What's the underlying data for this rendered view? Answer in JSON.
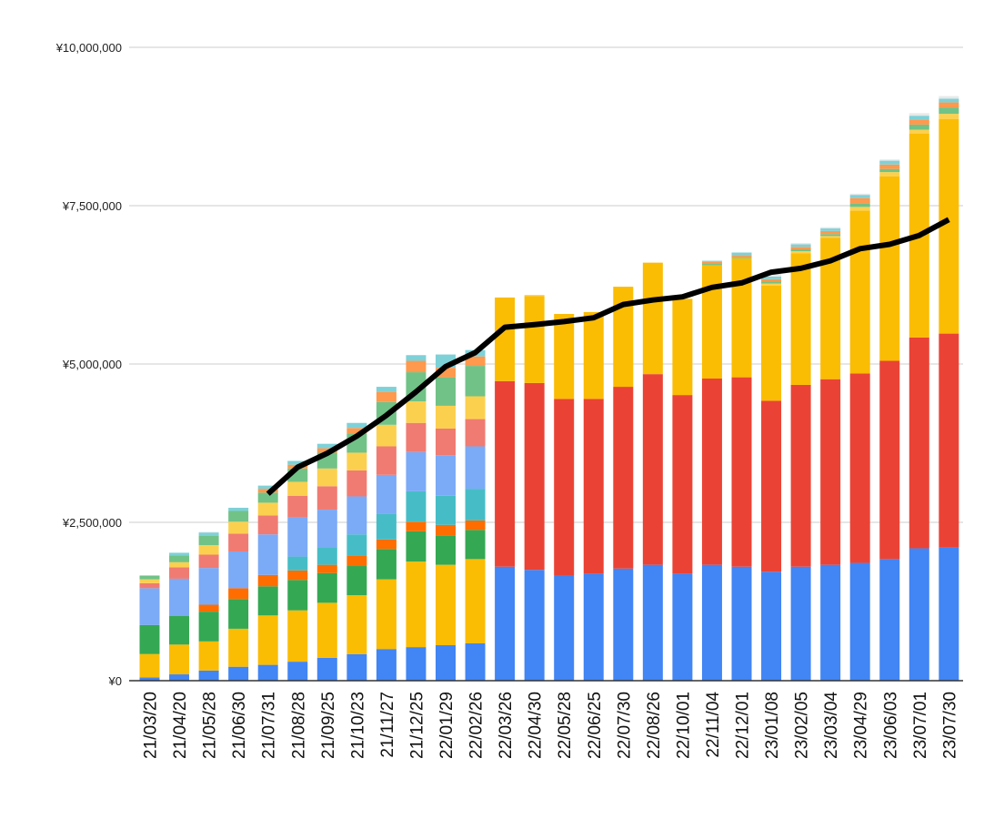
{
  "chart_data": {
    "type": "bar",
    "stacked": true,
    "title": "",
    "xlabel": "",
    "ylabel": "",
    "ylim": [
      0,
      10000000
    ],
    "yticks": [
      0,
      2500000,
      5000000,
      7500000,
      10000000
    ],
    "ytick_labels": [
      "¥0",
      "¥2,500,000",
      "¥5,000,000",
      "¥7,500,000",
      "¥10,000,000"
    ],
    "grid": true,
    "legend": "none",
    "categories": [
      "21/03/20",
      "21/04/20",
      "21/05/28",
      "21/06/30",
      "21/07/31",
      "21/08/28",
      "21/09/25",
      "21/10/23",
      "21/11/27",
      "21/12/25",
      "22/01/29",
      "22/02/26",
      "22/03/26",
      "22/04/30",
      "22/05/28",
      "22/06/25",
      "22/07/30",
      "22/08/26",
      "22/10/01",
      "22/11/04",
      "22/12/01",
      "23/01/08",
      "23/02/05",
      "23/03/04",
      "23/04/29",
      "23/06/03",
      "23/07/01",
      "23/07/30"
    ],
    "series": [
      {
        "color": "#4285f4",
        "values": [
          50000,
          100000,
          160000,
          220000,
          250000,
          300000,
          360000,
          420000,
          500000,
          530000,
          560000,
          590000,
          1800000,
          1750000,
          1660000,
          1690000,
          1770000,
          1830000,
          1690000,
          1830000,
          1800000,
          1720000,
          1800000,
          1830000,
          1860000,
          1920000,
          2090000,
          2100000
        ]
      },
      {
        "color": "#ea4335",
        "values": [
          0,
          0,
          0,
          0,
          0,
          0,
          0,
          0,
          0,
          0,
          0,
          0,
          2930000,
          2950000,
          2790000,
          2760000,
          2870000,
          3010000,
          2820000,
          2940000,
          2990000,
          2700000,
          2870000,
          2930000,
          2990000,
          3130000,
          3330000,
          3380000
        ]
      },
      {
        "color": "#fbbc04",
        "values": [
          370000,
          470000,
          460000,
          600000,
          780000,
          810000,
          870000,
          930000,
          1100000,
          1350000,
          1270000,
          1330000,
          1320000,
          1370000,
          1340000,
          1370000,
          1580000,
          1760000,
          1520000,
          1790000,
          1880000,
          1820000,
          2080000,
          2230000,
          2570000,
          2910000,
          3220000,
          3390000
        ]
      },
      {
        "color": "#34a853",
        "values": [
          460000,
          450000,
          470000,
          470000,
          460000,
          480000,
          470000,
          460000,
          480000,
          480000,
          460000,
          460000,
          0,
          0,
          0,
          0,
          0,
          0,
          0,
          0,
          0,
          0,
          0,
          0,
          0,
          0,
          0,
          0
        ]
      },
      {
        "color": "#ff6d01",
        "values": [
          0,
          0,
          110000,
          170000,
          180000,
          150000,
          130000,
          170000,
          150000,
          150000,
          170000,
          150000,
          0,
          0,
          0,
          0,
          0,
          0,
          0,
          0,
          0,
          0,
          0,
          0,
          0,
          0,
          0,
          0
        ]
      },
      {
        "color": "#46bdc6",
        "values": [
          0,
          0,
          0,
          0,
          0,
          220000,
          280000,
          330000,
          400000,
          480000,
          460000,
          500000,
          0,
          0,
          0,
          0,
          0,
          0,
          0,
          0,
          0,
          0,
          0,
          0,
          0,
          0,
          0,
          0
        ]
      },
      {
        "color": "#7baaf7",
        "values": [
          580000,
          590000,
          580000,
          580000,
          640000,
          620000,
          590000,
          600000,
          620000,
          620000,
          640000,
          670000,
          0,
          0,
          0,
          0,
          0,
          0,
          0,
          0,
          0,
          0,
          0,
          0,
          0,
          0,
          0,
          0
        ]
      },
      {
        "color": "#f07b72",
        "values": [
          80000,
          180000,
          210000,
          280000,
          300000,
          340000,
          370000,
          410000,
          450000,
          460000,
          420000,
          430000,
          0,
          0,
          0,
          0,
          0,
          0,
          0,
          0,
          0,
          0,
          0,
          0,
          0,
          0,
          0,
          0
        ]
      },
      {
        "color": "#fcd04f",
        "values": [
          60000,
          80000,
          150000,
          190000,
          200000,
          220000,
          280000,
          280000,
          340000,
          340000,
          360000,
          360000,
          0,
          20000,
          0,
          0,
          0,
          0,
          0,
          0,
          0,
          30000,
          30000,
          30000,
          60000,
          70000,
          60000,
          80000
        ]
      },
      {
        "color": "#71c287",
        "values": [
          60000,
          110000,
          150000,
          170000,
          160000,
          210000,
          250000,
          300000,
          360000,
          460000,
          450000,
          480000,
          0,
          0,
          0,
          0,
          0,
          0,
          0,
          20000,
          20000,
          30000,
          30000,
          30000,
          60000,
          50000,
          80000,
          100000
        ]
      },
      {
        "color": "#ff994d",
        "values": [
          0,
          0,
          0,
          0,
          60000,
          60000,
          70000,
          90000,
          160000,
          180000,
          150000,
          150000,
          0,
          0,
          0,
          0,
          0,
          0,
          0,
          30000,
          30000,
          40000,
          40000,
          50000,
          80000,
          70000,
          80000,
          80000
        ]
      },
      {
        "color": "#7ed1d7",
        "values": [
          0,
          40000,
          50000,
          50000,
          50000,
          60000,
          70000,
          80000,
          80000,
          90000,
          210000,
          100000,
          0,
          0,
          0,
          0,
          0,
          0,
          0,
          20000,
          40000,
          40000,
          40000,
          40000,
          50000,
          60000,
          60000,
          60000
        ]
      },
      {
        "color": "#e8e8e8",
        "values": [
          0,
          0,
          10000,
          0,
          0,
          0,
          0,
          0,
          0,
          0,
          0,
          0,
          0,
          0,
          0,
          0,
          0,
          0,
          0,
          0,
          0,
          40000,
          20000,
          20000,
          20000,
          20000,
          40000,
          40000
        ]
      }
    ],
    "line": {
      "color": "#000000",
      "start_index": 4,
      "values": [
        null,
        null,
        null,
        null,
        2950000,
        3370000,
        3590000,
        3860000,
        4190000,
        4560000,
        4960000,
        5180000,
        5580000,
        5620000,
        5670000,
        5730000,
        5940000,
        6010000,
        6060000,
        6210000,
        6280000,
        6450000,
        6510000,
        6630000,
        6820000,
        6890000,
        7030000,
        7280000
      ]
    }
  }
}
